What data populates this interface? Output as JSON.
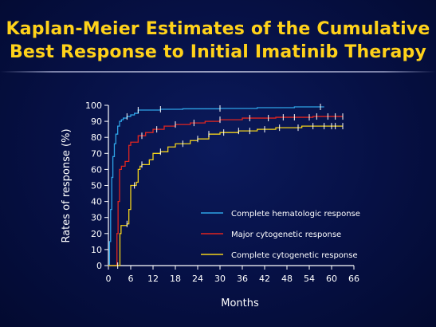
{
  "slide": {
    "title_line1": "Kaplan-Meier Estimates of the Cumulative",
    "title_line2": "Best Response to Initial Imatinib Therapy"
  },
  "chart_data": {
    "type": "line",
    "step": true,
    "xlabel": "Months",
    "ylabel": "Rates of response (%)",
    "xlim": [
      0,
      66
    ],
    "ylim": [
      0,
      100
    ],
    "x_ticks": [
      0,
      6,
      12,
      18,
      24,
      30,
      36,
      42,
      48,
      54,
      60,
      66
    ],
    "y_ticks": [
      0,
      10,
      20,
      30,
      40,
      50,
      60,
      70,
      80,
      90,
      100
    ],
    "grid": false,
    "legend_position": "lower-right",
    "series": [
      {
        "name": "Complete hematologic response",
        "color": "#2ea3e6",
        "points": [
          [
            0,
            0
          ],
          [
            0.3,
            15
          ],
          [
            0.6,
            35
          ],
          [
            0.9,
            55
          ],
          [
            1.2,
            68
          ],
          [
            1.6,
            76
          ],
          [
            2,
            82
          ],
          [
            2.5,
            87
          ],
          [
            3,
            90
          ],
          [
            3.5,
            91
          ],
          [
            4,
            92
          ],
          [
            5,
            93
          ],
          [
            6,
            94
          ],
          [
            7,
            95
          ],
          [
            8,
            97
          ],
          [
            10,
            97
          ],
          [
            14,
            97.5
          ],
          [
            20,
            97.8
          ],
          [
            30,
            98
          ],
          [
            40,
            98.5
          ],
          [
            50,
            99
          ],
          [
            58,
            99
          ]
        ],
        "censor_x": [
          5,
          8,
          14,
          30,
          57
        ]
      },
      {
        "name": "Major cytogenetic response",
        "color": "#e0251f",
        "points": [
          [
            0,
            0
          ],
          [
            2,
            0
          ],
          [
            2.3,
            20
          ],
          [
            2.6,
            40
          ],
          [
            3,
            60
          ],
          [
            3.5,
            62
          ],
          [
            4.5,
            65
          ],
          [
            5.5,
            75
          ],
          [
            6,
            77
          ],
          [
            7.5,
            77
          ],
          [
            8,
            81
          ],
          [
            10,
            83
          ],
          [
            12,
            85
          ],
          [
            15,
            87
          ],
          [
            18,
            88
          ],
          [
            22,
            89
          ],
          [
            26,
            90
          ],
          [
            30,
            91
          ],
          [
            36,
            92
          ],
          [
            45,
            92.5
          ],
          [
            55,
            93
          ],
          [
            63,
            93
          ]
        ],
        "censor_x": [
          9,
          13,
          18,
          23,
          30,
          38,
          43,
          47,
          50,
          54,
          56,
          59,
          61,
          63
        ]
      },
      {
        "name": "Complete cytogenetic response",
        "color": "#f2d21a",
        "points": [
          [
            0,
            0
          ],
          [
            2.8,
            0
          ],
          [
            3.1,
            20
          ],
          [
            3.4,
            25
          ],
          [
            5,
            26
          ],
          [
            5.5,
            35
          ],
          [
            6,
            50
          ],
          [
            7.5,
            52
          ],
          [
            8,
            60
          ],
          [
            8.5,
            62
          ],
          [
            9,
            63
          ],
          [
            11,
            66
          ],
          [
            12,
            70
          ],
          [
            14,
            71
          ],
          [
            16,
            74
          ],
          [
            18,
            76
          ],
          [
            22,
            78
          ],
          [
            24,
            79
          ],
          [
            27,
            82
          ],
          [
            30,
            83
          ],
          [
            35,
            84
          ],
          [
            40,
            85
          ],
          [
            45,
            86
          ],
          [
            52,
            87
          ],
          [
            63,
            87
          ]
        ],
        "censor_x": [
          2.5,
          5,
          7,
          9,
          14,
          20,
          24,
          27,
          31,
          35,
          38,
          42,
          46,
          51,
          55,
          58,
          60,
          61,
          63
        ]
      }
    ]
  }
}
